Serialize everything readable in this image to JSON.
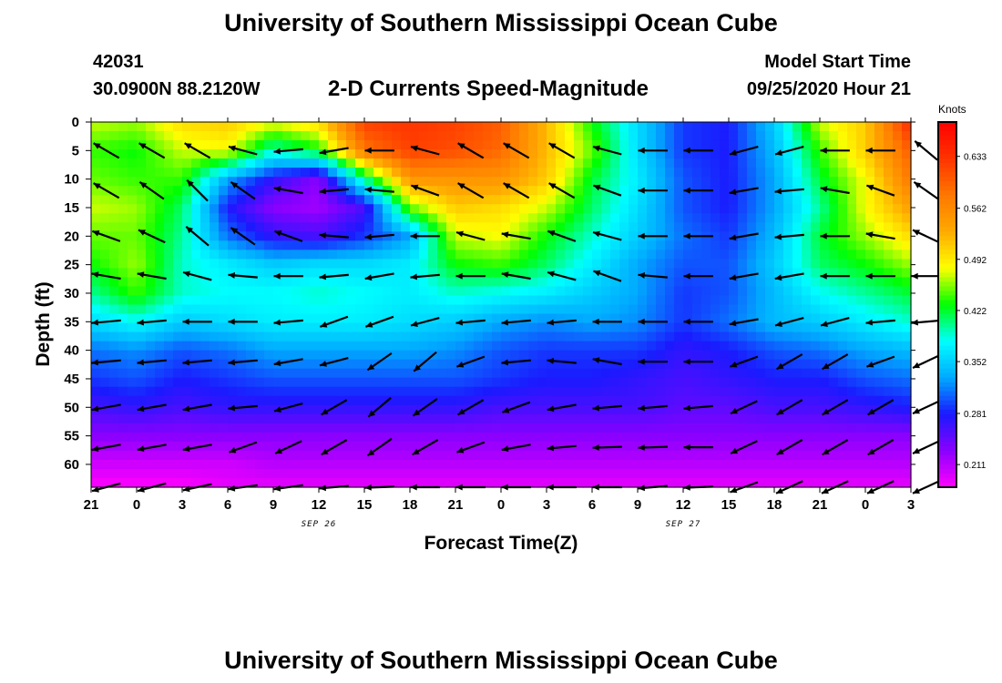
{
  "header": {
    "title": "University of Southern Mississippi Ocean Cube",
    "station_id": "42031",
    "location": "30.0900N 88.2120W",
    "subtitle": "2-D Currents Speed-Magnitude",
    "model_start_label": "Model Start Time",
    "model_start_value": "09/25/2020 Hour 21"
  },
  "footer": {
    "title": "University of Southern Mississippi Ocean Cube"
  },
  "colorbar": {
    "unit": "Knots",
    "ticks": [
      "0.633",
      "0.562",
      "0.492",
      "0.422",
      "0.352",
      "0.281",
      "0.211"
    ],
    "tick_values": [
      0.633,
      0.562,
      0.492,
      0.422,
      0.352,
      0.281,
      0.211
    ],
    "range": [
      0.18,
      0.68
    ]
  },
  "chart_data": {
    "type": "heatmap",
    "title": "2-D Currents Speed-Magnitude",
    "xlabel": "Forecast Time(Z)",
    "ylabel": "Depth (ft)",
    "ylim": [
      0,
      64
    ],
    "y_inverted": true,
    "x_tick_labels": [
      "21",
      "0",
      "3",
      "6",
      "9",
      "12",
      "15",
      "18",
      "21",
      "0",
      "3",
      "6",
      "9",
      "12",
      "15",
      "18",
      "21",
      "0",
      "3"
    ],
    "date_labels": [
      {
        "text": "SEP 26",
        "after_tick": "12"
      },
      {
        "text": "SEP 27",
        "after_tick": "12"
      }
    ],
    "y_ticks": [
      0,
      5,
      10,
      15,
      20,
      25,
      30,
      35,
      40,
      45,
      50,
      55,
      60
    ],
    "x_hours_since_start": [
      0,
      3,
      6,
      9,
      12,
      15,
      18,
      21,
      24,
      27,
      30,
      33,
      36,
      39,
      42,
      45,
      48,
      51,
      54
    ],
    "depths_ft": [
      0,
      5,
      10,
      15,
      20,
      25,
      30,
      35,
      40,
      45,
      50,
      55,
      60,
      64
    ],
    "speed_knots": [
      [
        0.47,
        0.46,
        0.5,
        0.51,
        0.48,
        0.5,
        0.62,
        0.63,
        0.62,
        0.6,
        0.52,
        0.43,
        0.36,
        0.29,
        0.28,
        0.35,
        0.47,
        0.51,
        0.64
      ],
      [
        0.44,
        0.43,
        0.47,
        0.48,
        0.39,
        0.43,
        0.58,
        0.62,
        0.61,
        0.59,
        0.52,
        0.45,
        0.36,
        0.29,
        0.28,
        0.34,
        0.44,
        0.51,
        0.6
      ],
      [
        0.45,
        0.44,
        0.44,
        0.33,
        0.27,
        0.23,
        0.4,
        0.55,
        0.55,
        0.55,
        0.51,
        0.42,
        0.37,
        0.3,
        0.28,
        0.33,
        0.42,
        0.48,
        0.58
      ],
      [
        0.47,
        0.46,
        0.41,
        0.28,
        0.23,
        0.22,
        0.26,
        0.45,
        0.51,
        0.5,
        0.47,
        0.41,
        0.36,
        0.3,
        0.28,
        0.33,
        0.4,
        0.48,
        0.54
      ],
      [
        0.45,
        0.45,
        0.4,
        0.31,
        0.27,
        0.26,
        0.29,
        0.33,
        0.47,
        0.48,
        0.43,
        0.39,
        0.35,
        0.31,
        0.29,
        0.34,
        0.42,
        0.46,
        0.5
      ],
      [
        0.43,
        0.46,
        0.39,
        0.37,
        0.35,
        0.36,
        0.36,
        0.37,
        0.43,
        0.44,
        0.41,
        0.37,
        0.33,
        0.3,
        0.3,
        0.35,
        0.41,
        0.43,
        0.46
      ],
      [
        0.4,
        0.44,
        0.39,
        0.38,
        0.38,
        0.39,
        0.38,
        0.37,
        0.39,
        0.38,
        0.37,
        0.35,
        0.33,
        0.29,
        0.3,
        0.34,
        0.38,
        0.4,
        0.42
      ],
      [
        0.36,
        0.38,
        0.35,
        0.36,
        0.37,
        0.37,
        0.37,
        0.36,
        0.35,
        0.33,
        0.32,
        0.33,
        0.32,
        0.29,
        0.31,
        0.34,
        0.35,
        0.37,
        0.39
      ],
      [
        0.31,
        0.32,
        0.3,
        0.31,
        0.33,
        0.33,
        0.33,
        0.33,
        0.32,
        0.3,
        0.29,
        0.29,
        0.29,
        0.27,
        0.28,
        0.3,
        0.31,
        0.33,
        0.34
      ],
      [
        0.29,
        0.3,
        0.28,
        0.29,
        0.3,
        0.3,
        0.3,
        0.3,
        0.3,
        0.29,
        0.28,
        0.28,
        0.27,
        0.26,
        0.27,
        0.28,
        0.28,
        0.3,
        0.31
      ],
      [
        0.26,
        0.27,
        0.26,
        0.27,
        0.27,
        0.27,
        0.27,
        0.27,
        0.27,
        0.26,
        0.26,
        0.26,
        0.26,
        0.25,
        0.25,
        0.26,
        0.26,
        0.27,
        0.28
      ],
      [
        0.23,
        0.23,
        0.23,
        0.23,
        0.23,
        0.23,
        0.23,
        0.23,
        0.23,
        0.23,
        0.23,
        0.23,
        0.23,
        0.23,
        0.23,
        0.23,
        0.23,
        0.23,
        0.23
      ],
      [
        0.2,
        0.2,
        0.2,
        0.2,
        0.21,
        0.21,
        0.21,
        0.21,
        0.21,
        0.21,
        0.21,
        0.21,
        0.21,
        0.21,
        0.21,
        0.21,
        0.21,
        0.21,
        0.21
      ],
      [
        0.18,
        0.18,
        0.18,
        0.19,
        0.19,
        0.19,
        0.19,
        0.19,
        0.19,
        0.19,
        0.19,
        0.19,
        0.19,
        0.19,
        0.19,
        0.19,
        0.19,
        0.19,
        0.19
      ]
    ],
    "vector_hours": [
      1,
      4,
      7,
      10,
      13,
      16,
      19,
      22,
      25,
      28,
      31,
      34,
      37,
      40,
      43,
      46,
      49,
      52,
      55
    ],
    "vector_depths_ft": [
      5,
      12,
      20,
      27,
      35,
      42,
      50,
      57,
      64
    ],
    "vector_direction_deg": [
      [
        300,
        300,
        300,
        285,
        265,
        260,
        270,
        285,
        300,
        300,
        300,
        285,
        270,
        270,
        255,
        255,
        270,
        270,
        310
      ],
      [
        300,
        305,
        315,
        305,
        280,
        265,
        275,
        290,
        300,
        300,
        300,
        290,
        270,
        270,
        260,
        265,
        280,
        290,
        305
      ],
      [
        290,
        295,
        310,
        305,
        290,
        275,
        265,
        270,
        285,
        280,
        290,
        285,
        270,
        270,
        260,
        265,
        270,
        280,
        295
      ],
      [
        280,
        280,
        285,
        275,
        270,
        265,
        260,
        265,
        270,
        280,
        285,
        290,
        275,
        270,
        260,
        260,
        270,
        270,
        270
      ],
      [
        265,
        265,
        270,
        270,
        265,
        250,
        250,
        255,
        265,
        265,
        265,
        270,
        270,
        270,
        260,
        255,
        255,
        265,
        265
      ],
      [
        265,
        265,
        265,
        265,
        260,
        255,
        235,
        230,
        250,
        265,
        275,
        280,
        270,
        270,
        250,
        240,
        240,
        250,
        245
      ],
      [
        260,
        260,
        260,
        265,
        255,
        240,
        230,
        235,
        240,
        250,
        260,
        265,
        265,
        265,
        245,
        240,
        240,
        240,
        245
      ],
      [
        260,
        260,
        260,
        250,
        245,
        240,
        235,
        240,
        250,
        260,
        265,
        268,
        268,
        270,
        245,
        240,
        240,
        240,
        245
      ],
      [
        255,
        255,
        258,
        262,
        262,
        265,
        268,
        270,
        270,
        270,
        270,
        270,
        265,
        268,
        250,
        245,
        245,
        245,
        245
      ]
    ],
    "vector_length": [
      [
        0.9,
        0.9,
        0.9,
        0.9,
        0.9,
        0.9,
        0.9,
        0.9,
        0.9,
        0.9,
        0.9,
        0.9,
        0.9,
        0.9,
        0.9,
        0.9,
        0.9,
        0.9,
        0.9
      ],
      [
        0.9,
        0.9,
        0.9,
        0.9,
        0.9,
        0.9,
        0.9,
        0.9,
        0.9,
        0.9,
        0.9,
        0.9,
        0.9,
        0.9,
        0.9,
        0.9,
        0.9,
        0.9,
        0.9
      ],
      [
        0.9,
        0.9,
        0.9,
        0.9,
        0.9,
        0.9,
        0.9,
        0.9,
        0.9,
        0.9,
        0.9,
        0.9,
        0.9,
        0.9,
        0.9,
        0.9,
        0.9,
        0.9,
        0.9
      ],
      [
        0.9,
        0.9,
        0.9,
        0.9,
        0.9,
        0.9,
        0.9,
        0.9,
        0.9,
        0.9,
        0.9,
        0.9,
        0.9,
        0.9,
        0.9,
        0.9,
        0.9,
        0.9,
        0.9
      ],
      [
        0.9,
        0.9,
        0.9,
        0.9,
        0.9,
        0.9,
        0.9,
        0.9,
        0.9,
        0.9,
        0.9,
        0.9,
        0.9,
        0.9,
        0.9,
        0.9,
        0.9,
        0.9,
        0.9
      ],
      [
        0.9,
        0.9,
        0.9,
        0.9,
        0.9,
        0.9,
        0.9,
        0.9,
        0.9,
        0.9,
        0.9,
        0.9,
        0.9,
        0.9,
        0.9,
        0.9,
        0.9,
        0.9,
        0.9
      ],
      [
        0.9,
        0.9,
        0.9,
        0.9,
        0.9,
        0.9,
        0.9,
        0.9,
        0.9,
        0.9,
        0.9,
        0.9,
        0.9,
        0.9,
        0.9,
        0.9,
        0.9,
        0.9,
        0.9
      ],
      [
        0.9,
        0.9,
        0.9,
        0.9,
        0.9,
        0.9,
        0.9,
        0.9,
        0.9,
        0.9,
        0.9,
        0.9,
        0.9,
        0.9,
        0.9,
        0.9,
        0.9,
        0.9,
        0.9
      ],
      [
        0.9,
        0.9,
        0.9,
        0.9,
        0.9,
        0.9,
        0.9,
        0.9,
        0.9,
        0.9,
        0.9,
        0.9,
        0.9,
        0.9,
        0.9,
        0.9,
        0.9,
        0.9,
        0.9
      ]
    ],
    "colormap": [
      "#ff00ff",
      "#8a00ff",
      "#1a1aff",
      "#00aaff",
      "#00ffff",
      "#00ff00",
      "#ffff00",
      "#ffaa00",
      "#ff7700",
      "#ff3300",
      "#ff0000"
    ],
    "grid": false,
    "legend": "right"
  }
}
